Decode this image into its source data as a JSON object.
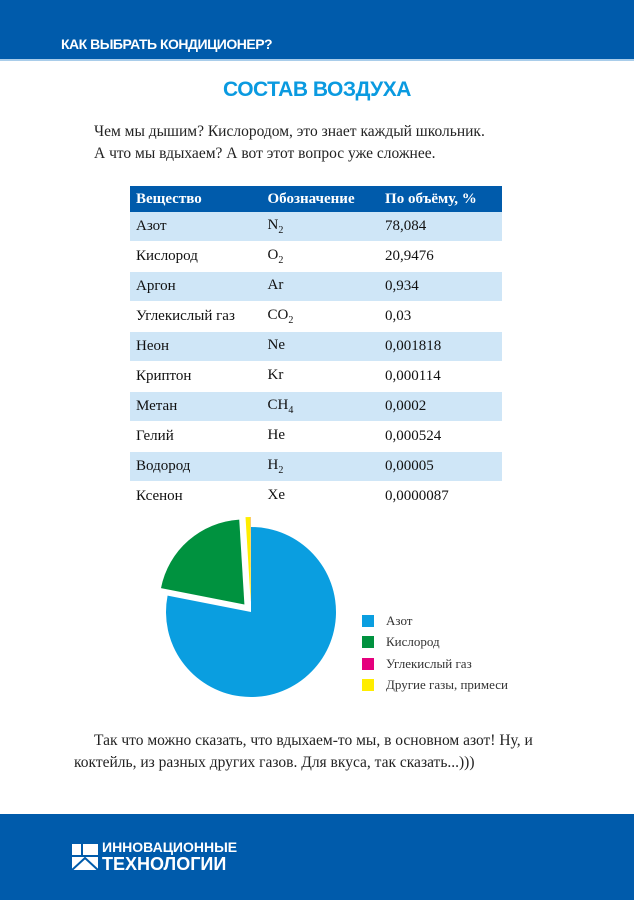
{
  "header": {
    "title": "КАК ВЫБРАТЬ КОНДИЦИОНЕР?"
  },
  "page_title": "СОСТАВ ВОЗДУХА",
  "intro": [
    "Чем мы дышим? Кислородом, это знает каждый школьник.",
    "А что мы вдыхаем? А вот этот вопрос уже сложнее."
  ],
  "table": {
    "headers": [
      "Вещество",
      "Обозначение",
      "По объёму, %"
    ],
    "rows": [
      {
        "name": "Азот",
        "sym": "N",
        "sub": "2",
        "vol": "78,084"
      },
      {
        "name": "Кислород",
        "sym": "O",
        "sub": "2",
        "vol": "20,9476"
      },
      {
        "name": "Аргон",
        "sym": "Ar",
        "sub": "",
        "vol": "0,934"
      },
      {
        "name": "Углекислый газ",
        "sym": "CO",
        "sub": "2",
        "vol": "0,03"
      },
      {
        "name": "Неон",
        "sym": "Ne",
        "sub": "",
        "vol": "0,001818"
      },
      {
        "name": "Криптон",
        "sym": "Kr",
        "sub": "",
        "vol": "0,000114"
      },
      {
        "name": "Метан",
        "sym": "CH",
        "sub": "4",
        "vol": "0,0002"
      },
      {
        "name": "Гелий",
        "sym": "He",
        "sub": "",
        "vol": "0,000524"
      },
      {
        "name": "Водород",
        "sym": "H",
        "sub": "2",
        "vol": "0,00005"
      },
      {
        "name": "Ксенон",
        "sym": "Xe",
        "sub": "",
        "vol": "0,0000087"
      }
    ]
  },
  "chart_data": {
    "type": "pie",
    "slices": [
      {
        "label": "Азот",
        "value": 78.08,
        "color": "#0a9ee0",
        "exploded": false
      },
      {
        "label": "Кислород",
        "value": 20.95,
        "color": "#00923f",
        "exploded": true
      },
      {
        "label": "Другие газы, примеси",
        "value": 0.94,
        "color": "#ffed00",
        "exploded": true
      },
      {
        "label": "Углекислый газ",
        "value": 0.03,
        "color": "#e5007d",
        "exploded": true
      }
    ],
    "legend": [
      "Азот",
      "Кислород",
      "Углекислый газ",
      "Другие газы, примеси"
    ],
    "legend_colors": [
      "#0a9ee0",
      "#00923f",
      "#e5007d",
      "#ffed00"
    ],
    "legend_placement": "right"
  },
  "outro": "Так что можно сказать, что вдыхаем-то мы, в основном азот! Ну, и коктейль, из разных других газов. Для вкуса, так сказать...)))",
  "footer": {
    "logo_line1": "ИННОВАЦИОННЫЕ",
    "logo_line2": "ТЕХНОЛОГИИ"
  }
}
